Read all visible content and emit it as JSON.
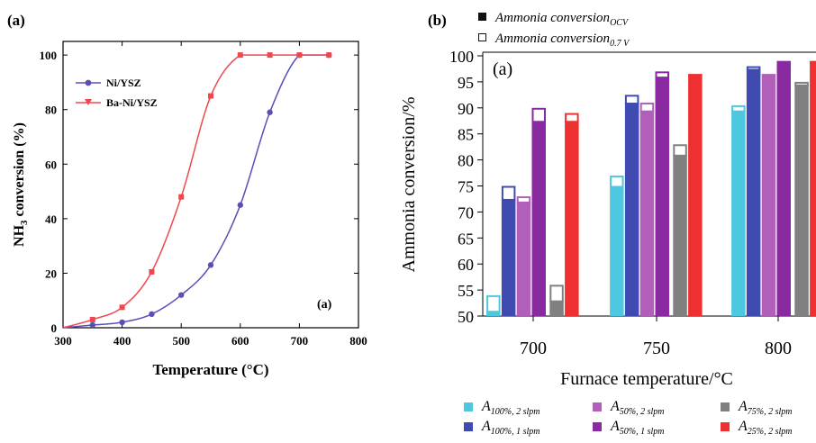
{
  "panel_a": {
    "panel_tag": "(a)",
    "inner_tag": "(a)",
    "chart_data": {
      "type": "line",
      "xlabel": "Temperature (°C)",
      "ylabel": "NH3 conversion (%)",
      "ylabel_main": "NH",
      "ylabel_sub": "3",
      "ylabel_rest": " conversion (%)",
      "xlim": [
        300,
        800
      ],
      "ylim": [
        0,
        105
      ],
      "xticks": [
        "300",
        "400",
        "500",
        "600",
        "700",
        "800"
      ],
      "yticks": [
        "0",
        "20",
        "40",
        "60",
        "80",
        "100"
      ],
      "legend_position": "top-left",
      "series": [
        {
          "name": "Ni/YSZ",
          "color": "#5b4fb5",
          "marker": "circle",
          "points": [
            [
              350,
              1
            ],
            [
              400,
              2
            ],
            [
              450,
              5
            ],
            [
              500,
              12
            ],
            [
              550,
              23
            ],
            [
              600,
              45
            ],
            [
              650,
              79
            ],
            [
              700,
              100
            ],
            [
              750,
              100
            ]
          ]
        },
        {
          "name": "Ba-Ni/YSZ",
          "color": "#f0474f",
          "marker": "square",
          "points": [
            [
              350,
              3
            ],
            [
              400,
              7.5
            ],
            [
              450,
              20.5
            ],
            [
              500,
              48
            ],
            [
              550,
              85
            ],
            [
              600,
              100
            ],
            [
              650,
              100
            ],
            [
              700,
              100
            ],
            [
              750,
              100
            ]
          ]
        }
      ]
    }
  },
  "panel_b": {
    "panel_tag": "(b)",
    "inner_tag": "(a)",
    "marker_legend": {
      "filled_main": "Ammonia conversion",
      "filled_sub": "OCV",
      "open_main": "Ammonia conversion",
      "open_sub": "0.7 V"
    },
    "chart_data": {
      "type": "bar",
      "xlabel": "Furnace temperature/°C",
      "ylabel": "Ammonia conversion/%",
      "ylim": [
        50,
        100
      ],
      "yticks": [
        "50",
        "55",
        "60",
        "65",
        "70",
        "75",
        "80",
        "85",
        "90",
        "95",
        "100"
      ],
      "categories": [
        "700",
        "750",
        "800"
      ],
      "legend_position": "bottom",
      "series": [
        {
          "name_main": "A",
          "name_sub": "100%, 2 slpm",
          "color": "#4ec7e0",
          "ocv": [
            51,
            75,
            89.5
          ],
          "v07": [
            54,
            77,
            90.5
          ]
        },
        {
          "name_main": "A",
          "name_sub": "100%, 1 slpm",
          "color": "#3f4bb0",
          "ocv": [
            72.5,
            91,
            97.5
          ],
          "v07": [
            75,
            92.5,
            98
          ]
        },
        {
          "name_main": "A",
          "name_sub": "50%, 2 slpm",
          "color": "#b15fb8",
          "ocv": [
            72,
            89.5,
            96.5
          ],
          "v07": [
            73,
            91,
            96.5
          ]
        },
        {
          "name_main": "A",
          "name_sub": "50%, 1 slpm",
          "color": "#8a2aa0",
          "ocv": [
            87.5,
            96,
            99
          ],
          "v07": [
            90,
            97,
            99
          ]
        },
        {
          "name_main": "A",
          "name_sub": "75%, 2 slpm",
          "color": "#808080",
          "ocv": [
            53,
            81,
            94.5
          ],
          "v07": [
            56,
            83,
            95
          ]
        },
        {
          "name_main": "A",
          "name_sub": "25%, 2 slpm",
          "color": "#ee3030",
          "ocv": [
            87.5,
            96.5,
            99
          ],
          "v07": [
            89,
            96.5,
            99
          ]
        }
      ]
    }
  }
}
